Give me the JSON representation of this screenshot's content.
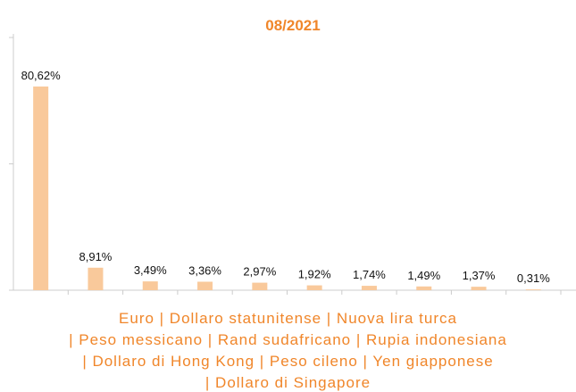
{
  "chart_data": {
    "type": "bar",
    "title": "08/2021",
    "values": [
      80.62,
      8.91,
      3.49,
      3.36,
      2.97,
      1.92,
      1.74,
      1.49,
      1.37,
      0.31
    ],
    "value_labels": [
      "80,62%",
      "8,91%",
      "3,49%",
      "3,36%",
      "2,97%",
      "1,92%",
      "1,74%",
      "1,49%",
      "1,37%",
      "0,31%"
    ],
    "color": "#f9c99b",
    "ylim": [
      0,
      100
    ],
    "yticks": [
      0,
      50,
      100
    ],
    "caption_lines": [
      "Euro | Dollaro statunitense | Nuova lira turca",
      "| Peso messicano | Rand sudafricano | Rupia indonesiana",
      "| Dollaro di Hong Kong | Peso cileno | Yen giapponese",
      "| Dollaro di Singapore"
    ]
  }
}
